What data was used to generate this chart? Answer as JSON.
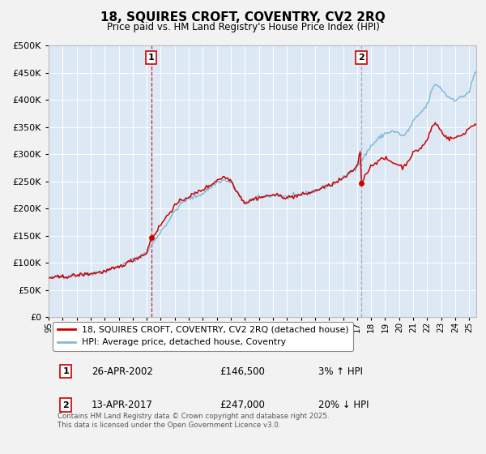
{
  "title": "18, SQUIRES CROFT, COVENTRY, CV2 2RQ",
  "subtitle": "Price paid vs. HM Land Registry's House Price Index (HPI)",
  "legend_line1": "18, SQUIRES CROFT, COVENTRY, CV2 2RQ (detached house)",
  "legend_line2": "HPI: Average price, detached house, Coventry",
  "footer": "Contains HM Land Registry data © Crown copyright and database right 2025.\nThis data is licensed under the Open Government Licence v3.0.",
  "annotation1_label": "1",
  "annotation1_date": "26-APR-2002",
  "annotation1_price": "£146,500",
  "annotation1_hpi": "3% ↑ HPI",
  "annotation2_label": "2",
  "annotation2_date": "13-APR-2017",
  "annotation2_price": "£247,000",
  "annotation2_hpi": "20% ↓ HPI",
  "vline1_x": 2002.32,
  "vline2_x": 2017.29,
  "marker1_x": 2002.32,
  "marker1_y": 146500,
  "marker2_x": 2017.29,
  "marker2_y": 247000,
  "ylim": [
    0,
    500000
  ],
  "xlim_start": 1995,
  "xlim_end": 2025.5,
  "fig_bg_color": "#f2f2f2",
  "plot_bg_color": "#dce9f5",
  "red_line_color": "#cc0000",
  "blue_line_color": "#85b8d8",
  "grid_color": "#ffffff",
  "vline1_color": "#cc0000",
  "vline2_color": "#9999bb"
}
